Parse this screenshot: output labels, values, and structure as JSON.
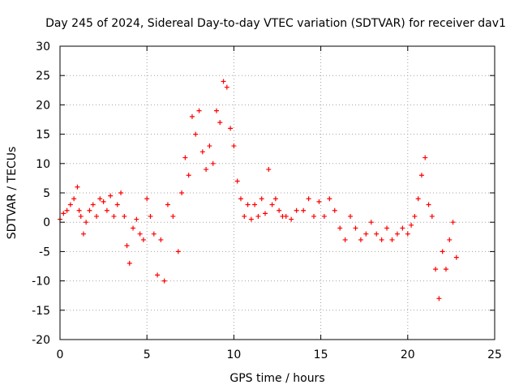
{
  "chart_data": {
    "type": "scatter",
    "title": "Day 245 of 2024, Sidereal Day-to-day VTEC variation (SDTVAR) for receiver dav1",
    "xlabel": "GPS time / hours",
    "ylabel": "SDTVAR / TECUs",
    "xlim": [
      0,
      25
    ],
    "ylim": [
      -20,
      30
    ],
    "xticks": [
      "0",
      "5",
      "10",
      "15",
      "20",
      "25"
    ],
    "yticks": [
      "-20",
      "-15",
      "-10",
      "-5",
      "0",
      "5",
      "10",
      "15",
      "20",
      "25",
      "30"
    ],
    "grid": true,
    "marker": "+",
    "color": "#ff0000",
    "series": [
      {
        "name": "SDTVAR",
        "x": [
          0.0,
          0.2,
          0.4,
          0.6,
          0.8,
          1.0,
          1.1,
          1.2,
          1.35,
          1.5,
          1.7,
          1.9,
          2.1,
          2.3,
          2.5,
          2.7,
          2.9,
          3.1,
          3.3,
          3.5,
          3.7,
          3.85,
          4.0,
          4.2,
          4.4,
          4.6,
          4.8,
          5.0,
          5.2,
          5.4,
          5.6,
          5.8,
          6.0,
          6.2,
          6.5,
          6.8,
          7.0,
          7.2,
          7.4,
          7.6,
          7.8,
          8.0,
          8.2,
          8.4,
          8.6,
          8.8,
          9.0,
          9.2,
          9.4,
          9.6,
          9.8,
          10.0,
          10.2,
          10.4,
          10.6,
          10.8,
          11.0,
          11.2,
          11.4,
          11.6,
          11.8,
          12.0,
          12.2,
          12.4,
          12.6,
          12.8,
          13.0,
          13.3,
          13.6,
          14.0,
          14.3,
          14.6,
          14.9,
          15.2,
          15.5,
          15.8,
          16.1,
          16.4,
          16.7,
          17.0,
          17.3,
          17.6,
          17.9,
          18.2,
          18.5,
          18.8,
          19.1,
          19.4,
          19.7,
          20.0,
          20.2,
          20.4,
          20.6,
          20.8,
          21.0,
          21.2,
          21.4,
          21.6,
          21.8,
          22.0,
          22.2,
          22.4,
          22.6,
          22.8
        ],
        "y": [
          0.5,
          1.5,
          2.0,
          3.0,
          4.0,
          6.0,
          2.0,
          1.0,
          -2.0,
          0.0,
          2.0,
          3.0,
          1.0,
          4.0,
          3.5,
          2.0,
          4.5,
          1.0,
          3.0,
          5.0,
          1.0,
          -4.0,
          -7.0,
          -1.0,
          0.5,
          -2.0,
          -3.0,
          4.0,
          1.0,
          -2.0,
          -9.0,
          -3.0,
          -10.0,
          3.0,
          1.0,
          -5.0,
          5.0,
          11.0,
          8.0,
          18.0,
          15.0,
          19.0,
          12.0,
          9.0,
          13.0,
          10.0,
          19.0,
          17.0,
          24.0,
          23.0,
          16.0,
          13.0,
          7.0,
          4.0,
          1.0,
          3.0,
          0.5,
          3.0,
          1.0,
          4.0,
          1.5,
          9.0,
          3.0,
          4.0,
          2.0,
          1.0,
          1.0,
          0.5,
          2.0,
          2.0,
          4.0,
          1.0,
          3.5,
          1.0,
          4.0,
          2.0,
          -1.0,
          -3.0,
          1.0,
          -1.0,
          -3.0,
          -2.0,
          0.0,
          -2.0,
          -3.0,
          -1.0,
          -3.0,
          -2.0,
          -1.0,
          -2.0,
          -0.5,
          1.0,
          4.0,
          8.0,
          11.0,
          3.0,
          1.0,
          -8.0,
          -13.0,
          -5.0,
          -8.0,
          -3.0,
          0.0,
          -6.0
        ]
      }
    ]
  }
}
